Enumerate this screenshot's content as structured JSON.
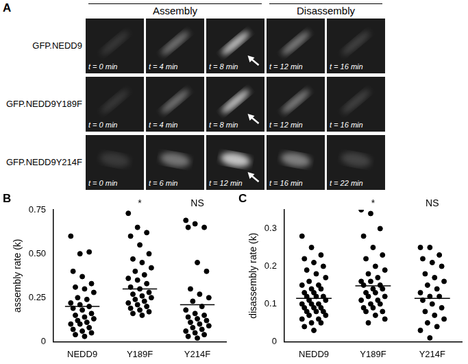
{
  "panel_a": {
    "panel_label": "A",
    "headers": [
      "Assembly",
      "Disassembly"
    ],
    "rows": [
      {
        "label": "GFP.NEDD9",
        "frames": [
          "t = 0 min",
          "t = 4 min",
          "t = 8 min",
          "t = 12 min",
          "t = 16 min"
        ]
      },
      {
        "label": "GFP.NEDD9Y189F",
        "frames": [
          "t = 0 min",
          "t = 4 min",
          "t = 8 min",
          "t = 12 min",
          "t = 16 min"
        ]
      },
      {
        "label": "GFP.NEDD9Y214F",
        "frames": [
          "t = 0 min",
          "t = 6 min",
          "t = 12 min",
          "t = 16 min",
          "t = 22 min"
        ]
      }
    ]
  },
  "chart_data": [
    {
      "panel_label": "B",
      "type": "scatter",
      "color": "#000000",
      "grid": false,
      "categories": [
        "NEDD9",
        "Y189F",
        "Y214F"
      ],
      "values": [
        [
          0.6,
          0.5,
          0.51,
          0.4,
          0.37,
          0.33,
          0.31,
          0.3,
          0.28,
          0.25,
          0.24,
          0.22,
          0.21,
          0.2,
          0.19,
          0.18,
          0.16,
          0.15,
          0.14,
          0.13,
          0.12,
          0.11,
          0.1,
          0.1,
          0.08,
          0.07,
          0.06,
          0.05,
          0.04,
          0.03
        ],
        [
          0.73,
          0.65,
          0.62,
          0.6,
          0.55,
          0.5,
          0.47,
          0.45,
          0.42,
          0.4,
          0.38,
          0.36,
          0.35,
          0.33,
          0.31,
          0.3,
          0.28,
          0.27,
          0.26,
          0.25,
          0.24,
          0.23,
          0.22,
          0.21,
          0.2,
          0.19,
          0.18,
          0.17,
          0.16,
          0.15
        ],
        [
          0.69,
          0.67,
          0.65,
          0.65,
          0.45,
          0.4,
          0.3,
          0.27,
          0.25,
          0.23,
          0.2,
          0.18,
          0.16,
          0.15,
          0.14,
          0.13,
          0.12,
          0.11,
          0.1,
          0.09,
          0.08,
          0.07,
          0.06,
          0.05,
          0.04,
          0.03,
          0.02
        ]
      ],
      "means": [
        0.2,
        0.3,
        0.21
      ],
      "y_label": "assembly rate (k)",
      "ylim": [
        0,
        0.75
      ],
      "yticks": [
        0,
        0.25,
        {
          "value": 0.5,
          "label": "0.50"
        },
        0.75
      ],
      "annotations": [
        {
          "category": "Y189F",
          "text": "*"
        },
        {
          "category": "Y214F",
          "text": "NS"
        }
      ]
    },
    {
      "panel_label": "C",
      "type": "scatter",
      "color": "#000000",
      "grid": false,
      "categories": [
        "NEDD9",
        "Y189F",
        "Y214F"
      ],
      "values": [
        [
          0.28,
          0.25,
          0.23,
          0.22,
          0.21,
          0.2,
          0.19,
          0.18,
          0.17,
          0.16,
          0.15,
          0.15,
          0.14,
          0.14,
          0.13,
          0.13,
          0.12,
          0.12,
          0.12,
          0.11,
          0.11,
          0.1,
          0.1,
          0.1,
          0.09,
          0.09,
          0.09,
          0.08,
          0.08,
          0.08,
          0.07,
          0.07,
          0.06,
          0.06,
          0.05,
          0.05,
          0.04,
          0.03
        ],
        [
          0.35,
          0.34,
          0.3,
          0.28,
          0.25,
          0.23,
          0.22,
          0.2,
          0.19,
          0.18,
          0.17,
          0.16,
          0.16,
          0.15,
          0.15,
          0.14,
          0.14,
          0.13,
          0.13,
          0.12,
          0.12,
          0.11,
          0.11,
          0.1,
          0.1,
          0.09,
          0.09,
          0.08,
          0.08,
          0.07,
          0.06,
          0.05
        ],
        [
          0.25,
          0.25,
          0.23,
          0.22,
          0.21,
          0.2,
          0.18,
          0.17,
          0.16,
          0.15,
          0.14,
          0.13,
          0.12,
          0.12,
          0.11,
          0.1,
          0.09,
          0.08,
          0.07,
          0.06,
          0.05,
          0.04,
          0.03,
          0.01
        ]
      ],
      "means": [
        0.115,
        0.148,
        0.115
      ],
      "y_label": "disassembly rate (k)",
      "ylim": [
        0,
        0.35
      ],
      "yticks": [
        0,
        0.1,
        0.2,
        0.3
      ],
      "annotations": [
        {
          "category": "Y189F",
          "text": "*"
        },
        {
          "category": "Y214F",
          "text": "NS"
        }
      ]
    }
  ]
}
